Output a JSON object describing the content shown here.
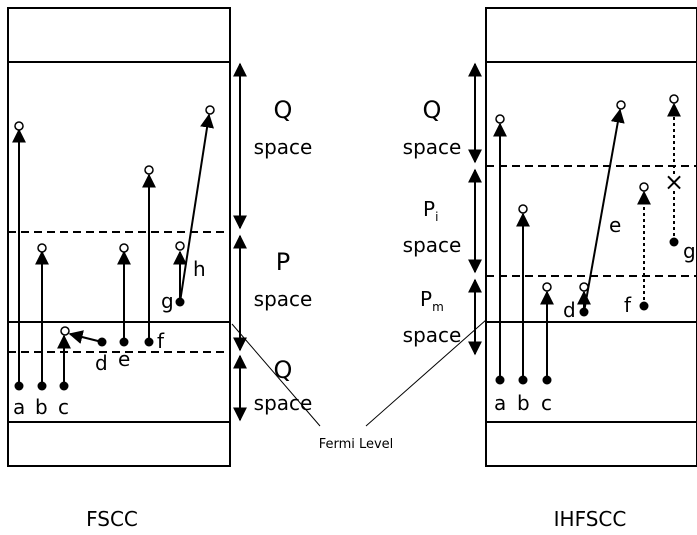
{
  "fscc": {
    "title": "FSCC",
    "region_q_top": {
      "name": "Q",
      "word": "space"
    },
    "region_p": {
      "name": "P",
      "word": "space"
    },
    "region_q_bottom": {
      "name": "Q",
      "word": "space"
    },
    "labels": [
      "a",
      "b",
      "c",
      "d",
      "e",
      "f",
      "g",
      "h"
    ]
  },
  "ihfscc": {
    "title": "IHFSCC",
    "region_q": {
      "name": "Q",
      "word": "space"
    },
    "region_pi": {
      "name": "P",
      "subscript": "i",
      "word": "space"
    },
    "region_pm": {
      "name": "P",
      "subscript": "m",
      "word": "space"
    },
    "labels": [
      "a",
      "b",
      "c",
      "d",
      "e",
      "f",
      "g"
    ]
  },
  "fermi_label": "Fermi Level",
  "cross_symbol": "×"
}
